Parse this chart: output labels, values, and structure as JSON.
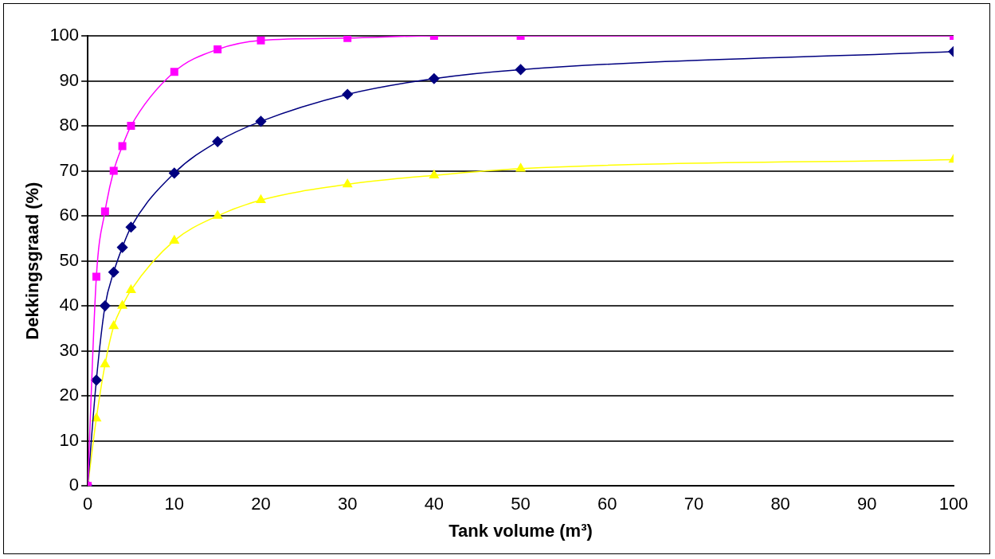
{
  "chart_data": {
    "type": "line",
    "xlabel": "Tank volume (m³)",
    "ylabel": "Dekkingsgraad (%)",
    "x": [
      0,
      1,
      2,
      3,
      4,
      5,
      10,
      15,
      20,
      30,
      40,
      50,
      100
    ],
    "series": [
      {
        "color": "#ff00ff",
        "marker": "square",
        "values": [
          0,
          46.5,
          61,
          70,
          75.5,
          80,
          92,
          97,
          99,
          99.5,
          100,
          100,
          100
        ]
      },
      {
        "color": "#000080",
        "marker": "diamond",
        "values": [
          0,
          23.5,
          40,
          47.5,
          53,
          57.5,
          69.5,
          76.5,
          81,
          87,
          90.5,
          92.5,
          96.5
        ]
      },
      {
        "color": "#ffff00",
        "marker": "triangle",
        "values": [
          0,
          15,
          27,
          35.5,
          40,
          43.5,
          54.5,
          60,
          63.5,
          67,
          69,
          70.5,
          72.5
        ]
      }
    ],
    "xlim": [
      0,
      100
    ],
    "xticks": [
      0,
      10,
      20,
      30,
      40,
      50,
      60,
      70,
      80,
      90,
      100
    ],
    "ylim": [
      0,
      100
    ],
    "yticks": [
      0,
      10,
      20,
      30,
      40,
      50,
      60,
      70,
      80,
      90,
      100
    ],
    "grid": "y",
    "legend": false,
    "line_style": "solid"
  }
}
